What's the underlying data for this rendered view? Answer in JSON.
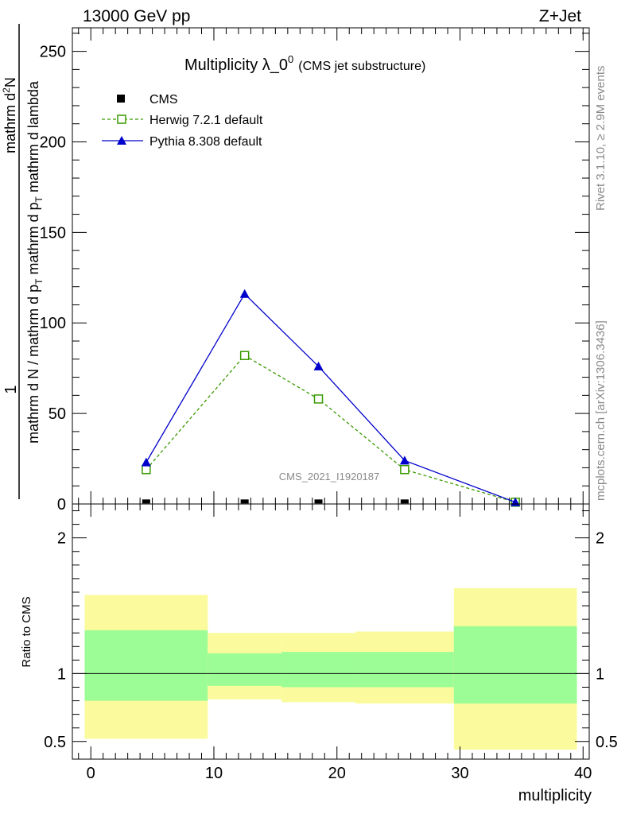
{
  "header": {
    "left": "13000 GeV pp",
    "right": "Z+Jet"
  },
  "side_text": {
    "rivet": "Rivet 3.1.10, ≥ 2.9M events",
    "mcplots": "mcplots.cern.ch [arXiv:1306.3436]"
  },
  "chart_data": [
    {
      "type": "line",
      "title_main": "Multiplicity λ_0",
      "title_sup": "0",
      "title_sub": "(CMS jet substructure)",
      "watermark": "CMS_2021_I1920187",
      "ylabel": {
        "num": "mathrm d²N",
        "den_l1": "mathrm d pₜ mathrm d pₜ mathrm d lambda",
        "pre": "1",
        "pre_den": "mathrm d N / mathrm d pₜ"
      },
      "ylabel_parts": {
        "line1": "1",
        "line2": "mathrm d N / mathrm d p",
        "line2_sub": "T",
        "line3": "mathrm d",
        "line3_sup": "2",
        "line3_b": "N",
        "line4a": "mathrm d p",
        "line4a_sub": "T",
        "line4b": " mathrm d lambda"
      },
      "xlim": [
        -1.5,
        40.5
      ],
      "ylim": [
        0,
        263
      ],
      "yticks": [
        0,
        50,
        100,
        150,
        200,
        250
      ],
      "ytick_labels": [
        "0",
        "50",
        "100",
        "150",
        "200",
        "250"
      ],
      "legend": {
        "position": "top-left",
        "entries": [
          {
            "label": "CMS",
            "marker": "square-filled",
            "color": "#000000"
          },
          {
            "label": "Herwig 7.2.1 default",
            "marker": "square-open",
            "color": "#3a9a00",
            "dash": true
          },
          {
            "label": "Pythia 8.308 default",
            "marker": "triangle",
            "color": "#0000cc"
          }
        ]
      },
      "series": [
        {
          "name": "CMS",
          "x": [
            4.5,
            12.5,
            18.5,
            25.5,
            34.5
          ],
          "y": [
            0.3,
            0.3,
            0.3,
            0.3,
            0.3
          ]
        },
        {
          "name": "Herwig 7.2.1 default",
          "x": [
            4.5,
            12.5,
            18.5,
            25.5,
            34.5
          ],
          "y": [
            19,
            82,
            58,
            19,
            1
          ]
        },
        {
          "name": "Pythia 8.308 default",
          "x": [
            4.5,
            12.5,
            18.5,
            25.5,
            34.5
          ],
          "y": [
            23,
            116,
            76,
            24,
            1
          ]
        }
      ]
    },
    {
      "type": "area",
      "ylabel": "Ratio to CMS",
      "xlabel": "multiplicity",
      "xlim": [
        -1.5,
        40.5
      ],
      "ylim": [
        0.37,
        2.25
      ],
      "yticks": [
        0.5,
        1,
        2
      ],
      "ytick_labels": [
        "0.5",
        "1",
        "2"
      ],
      "xticks": [
        0,
        10,
        20,
        30,
        40
      ],
      "xtick_labels": [
        "0",
        "10",
        "20",
        "30",
        "40"
      ],
      "bins": [
        {
          "x0": -0.5,
          "x1": 9.5,
          "yellow": [
            0.52,
            1.58
          ],
          "green": [
            0.8,
            1.32
          ]
        },
        {
          "x0": 9.5,
          "x1": 15.5,
          "yellow": [
            0.81,
            1.3
          ],
          "green": [
            0.91,
            1.15
          ]
        },
        {
          "x0": 15.5,
          "x1": 21.5,
          "yellow": [
            0.79,
            1.3
          ],
          "green": [
            0.9,
            1.16
          ]
        },
        {
          "x0": 21.5,
          "x1": 29.5,
          "yellow": [
            0.78,
            1.31
          ],
          "green": [
            0.9,
            1.16
          ]
        },
        {
          "x0": 29.5,
          "x1": 39.5,
          "yellow": [
            0.44,
            1.63
          ],
          "green": [
            0.78,
            1.35
          ]
        }
      ],
      "reference_line": 1
    }
  ],
  "colors": {
    "yellow_band": "#fbfb9d",
    "green_band": "#9cfc96",
    "herwig": "#3a9a00",
    "pythia": "#0000cc"
  }
}
